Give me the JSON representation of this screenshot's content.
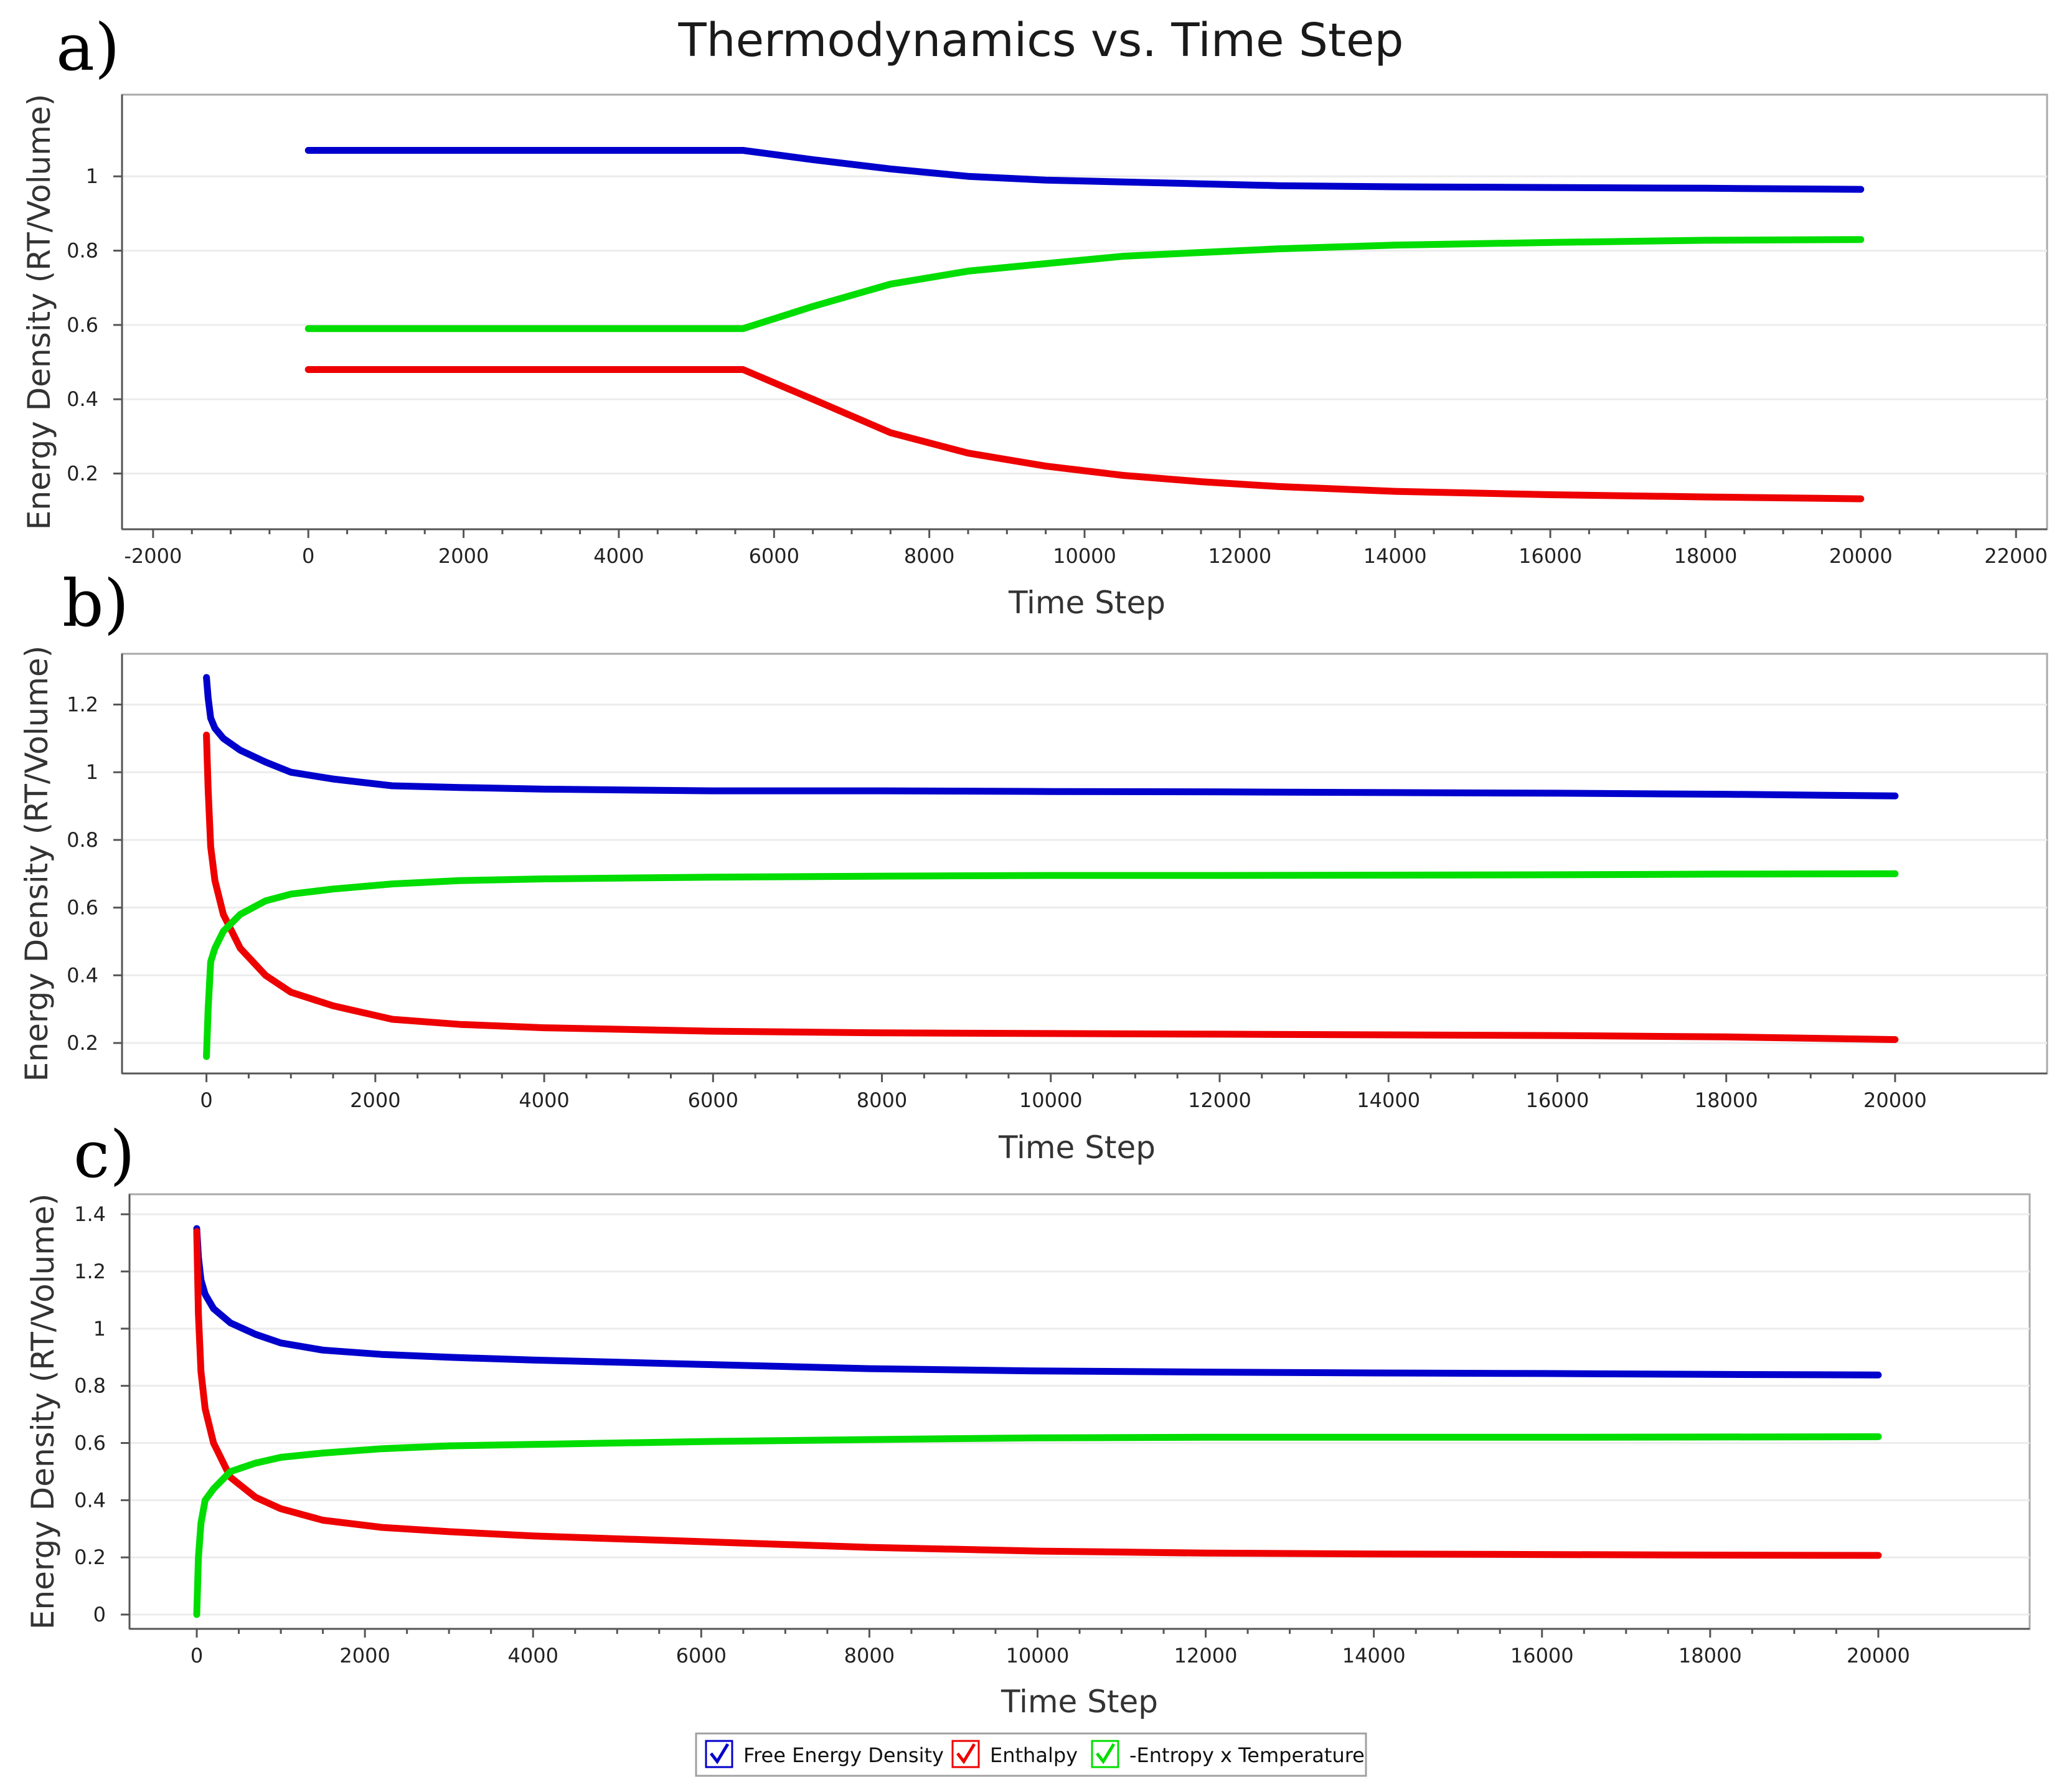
{
  "chart_data": [
    {
      "type": "line",
      "panel_label": "a)",
      "title": "Thermodynamics vs. Time Step",
      "xlabel": "Time Step",
      "ylabel": "Energy Density (RT/Volume)",
      "xlim": [
        -2400,
        22400
      ],
      "ylim": [
        0.05,
        1.22
      ],
      "xticks": [
        -2000,
        0,
        2000,
        4000,
        6000,
        8000,
        10000,
        12000,
        14000,
        16000,
        18000,
        20000,
        22000
      ],
      "yticks": [
        0.2,
        0.4,
        0.6,
        0.8,
        1
      ],
      "grid": true,
      "series": [
        {
          "name": "Free Energy Density",
          "color": "#0000cc",
          "x": [
            0,
            5600,
            6500,
            7500,
            8500,
            9500,
            10500,
            11500,
            12500,
            14000,
            16000,
            18000,
            20000
          ],
          "y": [
            1.07,
            1.07,
            1.045,
            1.02,
            1.0,
            0.99,
            0.985,
            0.98,
            0.975,
            0.972,
            0.97,
            0.968,
            0.965
          ]
        },
        {
          "name": "Enthalpy",
          "color": "#ee0000",
          "x": [
            0,
            5600,
            6500,
            7500,
            8500,
            9500,
            10500,
            11500,
            12500,
            14000,
            16000,
            18000,
            20000
          ],
          "y": [
            0.48,
            0.48,
            0.4,
            0.31,
            0.255,
            0.22,
            0.195,
            0.178,
            0.165,
            0.152,
            0.143,
            0.137,
            0.132
          ]
        },
        {
          "name": "-Entropy x Temperature",
          "color": "#00dd00",
          "x": [
            0,
            5600,
            6500,
            7500,
            8500,
            9500,
            10500,
            11500,
            12500,
            14000,
            16000,
            18000,
            20000
          ],
          "y": [
            0.59,
            0.59,
            0.65,
            0.71,
            0.745,
            0.765,
            0.785,
            0.795,
            0.805,
            0.815,
            0.822,
            0.828,
            0.83
          ]
        }
      ]
    },
    {
      "type": "line",
      "panel_label": "b)",
      "title": "",
      "xlabel": "Time Step",
      "ylabel": "Energy Density (RT/Volume)",
      "xlim": [
        -1000,
        21800
      ],
      "ylim": [
        0.11,
        1.35
      ],
      "xticks": [
        0,
        2000,
        4000,
        6000,
        8000,
        10000,
        12000,
        14000,
        16000,
        18000,
        20000
      ],
      "yticks": [
        0.2,
        0.4,
        0.6,
        0.8,
        1,
        1.2
      ],
      "grid": true,
      "series": [
        {
          "name": "Free Energy Density",
          "color": "#0000cc",
          "x": [
            0,
            20,
            50,
            100,
            200,
            400,
            700,
            1000,
            1500,
            2200,
            3000,
            4000,
            6000,
            8000,
            10000,
            12000,
            14000,
            16000,
            18000,
            20000
          ],
          "y": [
            1.28,
            1.22,
            1.16,
            1.13,
            1.1,
            1.065,
            1.03,
            1.0,
            0.98,
            0.96,
            0.955,
            0.95,
            0.945,
            0.945,
            0.943,
            0.942,
            0.94,
            0.938,
            0.935,
            0.93
          ]
        },
        {
          "name": "Enthalpy",
          "color": "#ee0000",
          "x": [
            0,
            20,
            50,
            100,
            200,
            400,
            700,
            1000,
            1500,
            2200,
            3000,
            4000,
            6000,
            8000,
            10000,
            12000,
            14000,
            16000,
            18000,
            20000
          ],
          "y": [
            1.11,
            0.95,
            0.78,
            0.68,
            0.58,
            0.48,
            0.4,
            0.35,
            0.31,
            0.27,
            0.255,
            0.245,
            0.235,
            0.23,
            0.228,
            0.226,
            0.224,
            0.222,
            0.218,
            0.21
          ]
        },
        {
          "name": "-Entropy x Temperature",
          "color": "#00dd00",
          "x": [
            0,
            20,
            50,
            100,
            200,
            400,
            700,
            1000,
            1500,
            2200,
            3000,
            4000,
            6000,
            8000,
            10000,
            12000,
            14000,
            16000,
            18000,
            20000
          ],
          "y": [
            0.16,
            0.3,
            0.44,
            0.48,
            0.53,
            0.58,
            0.62,
            0.64,
            0.655,
            0.67,
            0.68,
            0.685,
            0.69,
            0.693,
            0.695,
            0.695,
            0.696,
            0.697,
            0.699,
            0.7
          ]
        }
      ]
    },
    {
      "type": "line",
      "panel_label": "c)",
      "title": "",
      "xlabel": "Time Step",
      "ylabel": "Energy Density (RT/Volume)",
      "xlim": [
        -800,
        21800
      ],
      "ylim": [
        -0.05,
        1.47
      ],
      "xticks": [
        0,
        2000,
        4000,
        6000,
        8000,
        10000,
        12000,
        14000,
        16000,
        18000,
        20000
      ],
      "yticks": [
        0,
        0.2,
        0.4,
        0.6,
        0.8,
        1,
        1.2,
        1.4
      ],
      "grid": true,
      "series": [
        {
          "name": "Free Energy Density",
          "color": "#0000cc",
          "x": [
            0,
            20,
            50,
            100,
            200,
            400,
            700,
            1000,
            1500,
            2200,
            3000,
            4000,
            6000,
            8000,
            10000,
            12000,
            14000,
            16000,
            18000,
            20000
          ],
          "y": [
            1.35,
            1.25,
            1.17,
            1.12,
            1.07,
            1.02,
            0.98,
            0.95,
            0.925,
            0.91,
            0.9,
            0.89,
            0.875,
            0.86,
            0.852,
            0.848,
            0.845,
            0.843,
            0.84,
            0.838
          ]
        },
        {
          "name": "Enthalpy",
          "color": "#ee0000",
          "x": [
            0,
            20,
            50,
            100,
            200,
            400,
            700,
            1000,
            1500,
            2200,
            3000,
            4000,
            6000,
            8000,
            10000,
            12000,
            14000,
            16000,
            18000,
            20000
          ],
          "y": [
            1.34,
            1.05,
            0.85,
            0.72,
            0.6,
            0.48,
            0.41,
            0.37,
            0.33,
            0.305,
            0.29,
            0.275,
            0.255,
            0.235,
            0.222,
            0.215,
            0.212,
            0.21,
            0.208,
            0.207
          ]
        },
        {
          "name": "-Entropy x Temperature",
          "color": "#00dd00",
          "x": [
            0,
            20,
            50,
            100,
            200,
            400,
            700,
            1000,
            1500,
            2200,
            3000,
            4000,
            6000,
            8000,
            10000,
            12000,
            14000,
            16000,
            18000,
            20000
          ],
          "y": [
            0.0,
            0.2,
            0.32,
            0.4,
            0.44,
            0.5,
            0.53,
            0.55,
            0.565,
            0.58,
            0.59,
            0.595,
            0.605,
            0.612,
            0.618,
            0.62,
            0.62,
            0.62,
            0.621,
            0.622
          ]
        }
      ]
    }
  ],
  "legend": {
    "items": [
      {
        "label": "Free Energy Density",
        "color": "#0000cc"
      },
      {
        "label": "Enthalpy",
        "color": "#ee0000"
      },
      {
        "label": "-Entropy x Temperature",
        "color": "#00dd00"
      }
    ]
  }
}
